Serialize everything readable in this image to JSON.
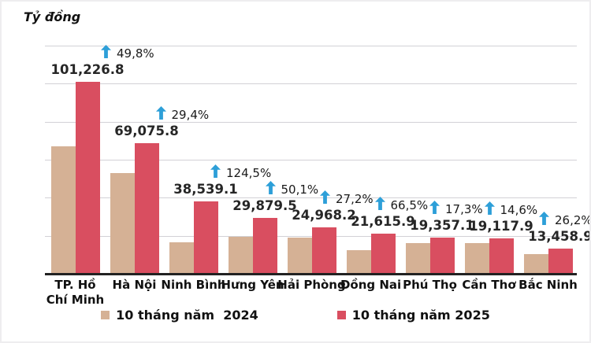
{
  "chart_data": {
    "type": "bar",
    "unit_label": "Tỷ đồng",
    "categories": [
      "TP. Hồ Chí Minh",
      "Hà Nội",
      "Ninh Bình",
      "Hưng Yên",
      "Hải Phòng",
      "Đồng Nai",
      "Phú Thọ",
      "Cần Thơ",
      "Bắc Ninh"
    ],
    "series": [
      {
        "name": "10 tháng năm  2024",
        "color": "#d5b195",
        "estimated": true,
        "values": [
          67575,
          53382,
          17167,
          19906,
          19629,
          12983,
          16502,
          16682,
          10665
        ]
      },
      {
        "name": "10 tháng năm 2025",
        "color": "#d94e60",
        "values": [
          101226.8,
          69075.8,
          38539.1,
          29879.5,
          24968.2,
          21615.9,
          19357.1,
          19117.9,
          13458.9
        ],
        "data_labels": [
          "101,226.8",
          "69,075.8",
          "38,539.1",
          "29,879.5",
          "24,968.2",
          "21,615.9",
          "19,357.1",
          "19,117.9",
          "13,458.9"
        ]
      }
    ],
    "growth_labels": [
      "49,8%",
      "29,4%",
      "124,5%",
      "50,1%",
      "27,2%",
      "66,5%",
      "17,3%",
      "14,6%",
      "26,2%"
    ],
    "arrow_color": "#2d9fd8",
    "ylim": [
      0,
      125000
    ],
    "gridline_step": 20000,
    "grid": true,
    "legend_position": "bottom"
  }
}
